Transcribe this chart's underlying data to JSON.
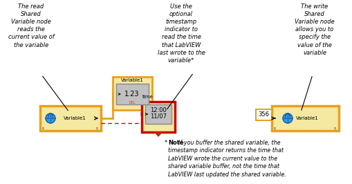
{
  "bg_color": "#ffffff",
  "orange": "#E8A020",
  "dark_red": "#CC0000",
  "gray_fill": "#C0C0C0",
  "light_yellow": "#F5E8A0",
  "annotation1": "The read\nShared\nVariable node\nreads the\ncurrent value of\nthe variable",
  "annotation2": "Use the\noptional\ntimestamp\nindicator to\nread the time\nthat LabVIEW\nlast wrote to the\nvariable*",
  "annotation3": "The write\nShared\nVariable node\nallows you to\nspecify the\nvalue of the\nvariable"
}
